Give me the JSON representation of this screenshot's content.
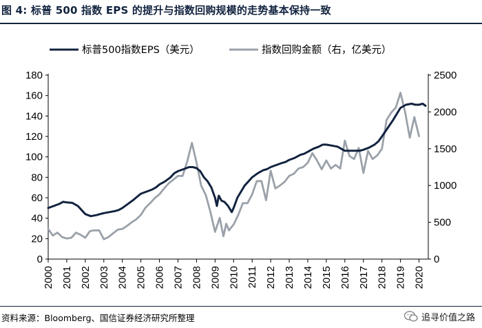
{
  "figure": {
    "title": "图 4: 标普 500 指数 EPS 的提升与指数回购规模的走势基本保持一致",
    "source": "资料来源：Bloomberg、国信证券经济研究所整理",
    "watermark": "追寻价值之路"
  },
  "colors": {
    "eps": "#12233f",
    "buyback": "#9aa1a9",
    "title": "#12233f",
    "rule": "#12233f"
  },
  "chart_data": {
    "type": "line",
    "legend_placement": "top",
    "grid": false,
    "x_ticks": [
      "2000",
      "2001",
      "2002",
      "2003",
      "2004",
      "2005",
      "2006",
      "2007",
      "2008",
      "2009",
      "2010",
      "2011",
      "2012",
      "2013",
      "2014",
      "2015",
      "2016",
      "2017",
      "2018",
      "2019",
      "2020"
    ],
    "xlim": [
      2000,
      2020.5
    ],
    "y_left": {
      "ylim": [
        0,
        180
      ],
      "ticks": [
        "0",
        "20",
        "40",
        "60",
        "80",
        "100",
        "120",
        "140",
        "160",
        "180"
      ]
    },
    "y_right": {
      "ylim": [
        0,
        2500
      ],
      "ticks": [
        "0",
        "500",
        "1000",
        "1500",
        "2000",
        "2500"
      ]
    },
    "series": [
      {
        "name": "标普500指数EPS（美元）",
        "axis": "left",
        "color": "#12233f",
        "points": [
          [
            2000.0,
            50
          ],
          [
            2000.3,
            52
          ],
          [
            2000.6,
            54
          ],
          [
            2000.8,
            56
          ],
          [
            2001.0,
            55.5
          ],
          [
            2001.3,
            55
          ],
          [
            2001.6,
            52
          ],
          [
            2001.8,
            48
          ],
          [
            2002.0,
            44
          ],
          [
            2002.3,
            42
          ],
          [
            2002.6,
            43
          ],
          [
            2002.8,
            44
          ],
          [
            2003.0,
            45
          ],
          [
            2003.3,
            46
          ],
          [
            2003.6,
            47
          ],
          [
            2003.8,
            48
          ],
          [
            2004.0,
            50
          ],
          [
            2004.3,
            54
          ],
          [
            2004.6,
            58
          ],
          [
            2004.8,
            61
          ],
          [
            2005.0,
            64
          ],
          [
            2005.3,
            66
          ],
          [
            2005.6,
            68
          ],
          [
            2005.8,
            70
          ],
          [
            2006.0,
            73
          ],
          [
            2006.3,
            76
          ],
          [
            2006.6,
            80
          ],
          [
            2006.8,
            84
          ],
          [
            2007.0,
            86
          ],
          [
            2007.3,
            88
          ],
          [
            2007.6,
            90
          ],
          [
            2007.8,
            90
          ],
          [
            2008.0,
            89
          ],
          [
            2008.2,
            86
          ],
          [
            2008.4,
            80
          ],
          [
            2008.6,
            76
          ],
          [
            2008.8,
            70
          ],
          [
            2009.0,
            60
          ],
          [
            2009.1,
            52
          ],
          [
            2009.2,
            62
          ],
          [
            2009.35,
            57
          ],
          [
            2009.5,
            56
          ],
          [
            2009.7,
            52
          ],
          [
            2009.9,
            46
          ],
          [
            2010.0,
            50
          ],
          [
            2010.2,
            60
          ],
          [
            2010.4,
            66
          ],
          [
            2010.6,
            72
          ],
          [
            2010.8,
            76
          ],
          [
            2011.0,
            80
          ],
          [
            2011.3,
            84
          ],
          [
            2011.6,
            87
          ],
          [
            2011.8,
            88
          ],
          [
            2012.0,
            90
          ],
          [
            2012.3,
            92
          ],
          [
            2012.6,
            94
          ],
          [
            2012.8,
            95
          ],
          [
            2013.0,
            97
          ],
          [
            2013.3,
            99
          ],
          [
            2013.6,
            102
          ],
          [
            2013.8,
            103
          ],
          [
            2014.0,
            105
          ],
          [
            2014.3,
            108
          ],
          [
            2014.6,
            110
          ],
          [
            2014.8,
            112
          ],
          [
            2015.0,
            112
          ],
          [
            2015.3,
            111
          ],
          [
            2015.6,
            110
          ],
          [
            2015.8,
            108
          ],
          [
            2016.0,
            106
          ],
          [
            2016.3,
            106
          ],
          [
            2016.6,
            106
          ],
          [
            2016.8,
            106
          ],
          [
            2017.0,
            107
          ],
          [
            2017.3,
            109
          ],
          [
            2017.6,
            112
          ],
          [
            2017.8,
            115
          ],
          [
            2018.0,
            120
          ],
          [
            2018.3,
            128
          ],
          [
            2018.6,
            136
          ],
          [
            2018.8,
            142
          ],
          [
            2019.0,
            148
          ],
          [
            2019.3,
            151
          ],
          [
            2019.6,
            152
          ],
          [
            2019.8,
            151
          ],
          [
            2020.0,
            151
          ],
          [
            2020.2,
            152
          ],
          [
            2020.35,
            150
          ]
        ]
      },
      {
        "name": "指数回购金额（右，亿美元）",
        "axis": "right",
        "color": "#9aa1a9",
        "points": [
          [
            2000.0,
            410
          ],
          [
            2000.25,
            320
          ],
          [
            2000.5,
            360
          ],
          [
            2000.75,
            300
          ],
          [
            2001.0,
            280
          ],
          [
            2001.25,
            290
          ],
          [
            2001.5,
            360
          ],
          [
            2001.75,
            330
          ],
          [
            2002.0,
            290
          ],
          [
            2002.25,
            380
          ],
          [
            2002.5,
            390
          ],
          [
            2002.75,
            390
          ],
          [
            2003.0,
            270
          ],
          [
            2003.25,
            300
          ],
          [
            2003.5,
            350
          ],
          [
            2003.75,
            400
          ],
          [
            2004.0,
            410
          ],
          [
            2004.25,
            450
          ],
          [
            2004.5,
            500
          ],
          [
            2004.75,
            540
          ],
          [
            2005.0,
            600
          ],
          [
            2005.25,
            700
          ],
          [
            2005.5,
            760
          ],
          [
            2005.75,
            830
          ],
          [
            2006.0,
            880
          ],
          [
            2006.25,
            960
          ],
          [
            2006.5,
            1030
          ],
          [
            2006.75,
            1080
          ],
          [
            2007.0,
            1130
          ],
          [
            2007.25,
            1130
          ],
          [
            2007.5,
            1330
          ],
          [
            2007.75,
            1580
          ],
          [
            2008.0,
            1310
          ],
          [
            2008.25,
            1000
          ],
          [
            2008.5,
            870
          ],
          [
            2008.75,
            640
          ],
          [
            2009.0,
            370
          ],
          [
            2009.25,
            560
          ],
          [
            2009.45,
            310
          ],
          [
            2009.6,
            480
          ],
          [
            2009.75,
            390
          ],
          [
            2010.0,
            470
          ],
          [
            2010.25,
            600
          ],
          [
            2010.5,
            760
          ],
          [
            2010.75,
            760
          ],
          [
            2011.0,
            880
          ],
          [
            2011.25,
            1060
          ],
          [
            2011.5,
            1060
          ],
          [
            2011.75,
            800
          ],
          [
            2012.0,
            1200
          ],
          [
            2012.25,
            960
          ],
          [
            2012.5,
            1000
          ],
          [
            2012.75,
            1050
          ],
          [
            2013.0,
            1130
          ],
          [
            2013.25,
            1160
          ],
          [
            2013.5,
            1230
          ],
          [
            2013.75,
            1250
          ],
          [
            2014.0,
            1310
          ],
          [
            2014.25,
            1440
          ],
          [
            2014.5,
            1340
          ],
          [
            2014.75,
            1220
          ],
          [
            2015.0,
            1340
          ],
          [
            2015.25,
            1230
          ],
          [
            2015.5,
            1280
          ],
          [
            2015.75,
            1230
          ],
          [
            2016.0,
            1610
          ],
          [
            2016.25,
            1400
          ],
          [
            2016.5,
            1360
          ],
          [
            2016.75,
            1510
          ],
          [
            2017.0,
            1170
          ],
          [
            2017.25,
            1470
          ],
          [
            2017.5,
            1360
          ],
          [
            2017.75,
            1410
          ],
          [
            2018.0,
            1500
          ],
          [
            2018.25,
            1890
          ],
          [
            2018.5,
            1990
          ],
          [
            2018.75,
            2060
          ],
          [
            2019.0,
            2260
          ],
          [
            2019.25,
            2000
          ],
          [
            2019.5,
            1650
          ],
          [
            2019.75,
            1930
          ],
          [
            2020.0,
            1670
          ]
        ]
      }
    ]
  }
}
